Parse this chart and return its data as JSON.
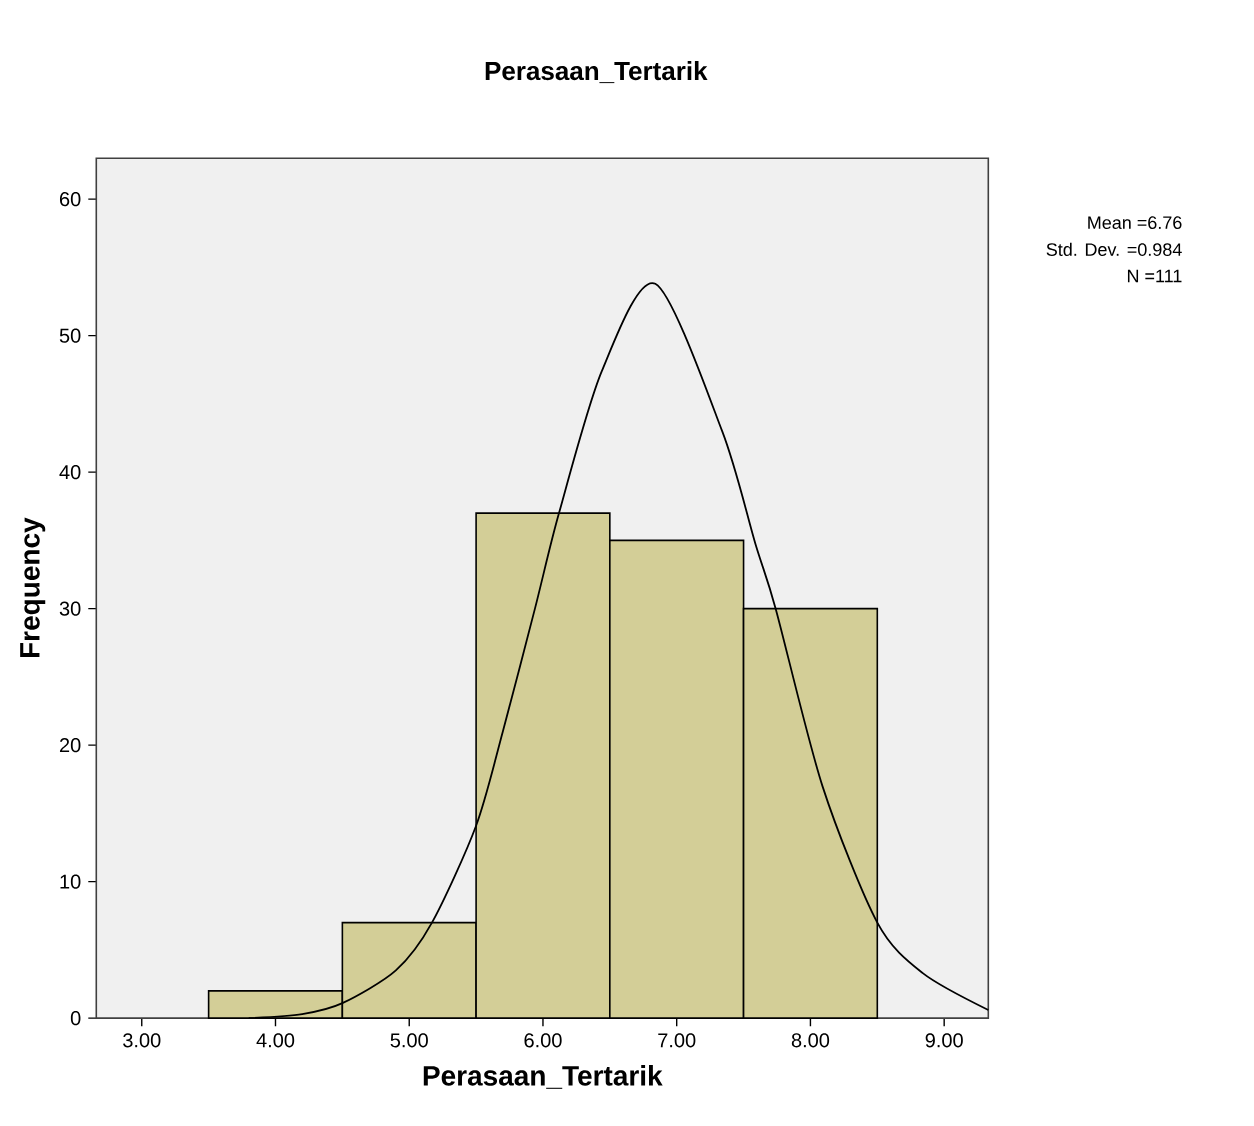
{
  "chart_data": {
    "type": "histogram",
    "title": "Perasaan_Tertarik",
    "xlabel": "Perasaan_Tertarik",
    "ylabel": "Frequency",
    "bins": [
      3.5,
      4.5,
      5.5,
      6.5,
      7.5,
      8.5
    ],
    "values": [
      2,
      7,
      37,
      35,
      30
    ],
    "color": "#d3ce97",
    "series": [
      {
        "type": "line",
        "color": "#000000",
        "x": [
          3.8,
          4.2,
          4.5,
          4.9,
          5.17,
          5.5,
          5.7,
          5.94,
          6.12,
          6.44,
          6.84,
          7.34,
          7.59,
          7.74,
          8.09,
          8.5,
          8.84,
          9.33
        ],
        "values": [
          0,
          0.3,
          1.1,
          3.5,
          7,
          14.1,
          21,
          30,
          37,
          47.4,
          53.8,
          43,
          34.7,
          30,
          17,
          7,
          3.3,
          0.6
        ]
      }
    ],
    "xlim": [
      2.66,
      9.33
    ],
    "ylim": [
      0,
      63
    ],
    "xticks": [
      {
        "value": 3,
        "label": "3.00"
      },
      {
        "value": 4,
        "label": "4.00"
      },
      {
        "value": 5,
        "label": "5.00"
      },
      {
        "value": 6,
        "label": "6.00"
      },
      {
        "value": 7,
        "label": "7.00"
      },
      {
        "value": 8,
        "label": "8.00"
      },
      {
        "value": 9,
        "label": "9.00"
      }
    ],
    "yticks": [
      0,
      10,
      20,
      30,
      40,
      50,
      60
    ],
    "annotations": [
      "Mean =6.76",
      "Std. Dev. =0.984",
      "N =111"
    ],
    "grid": false
  }
}
